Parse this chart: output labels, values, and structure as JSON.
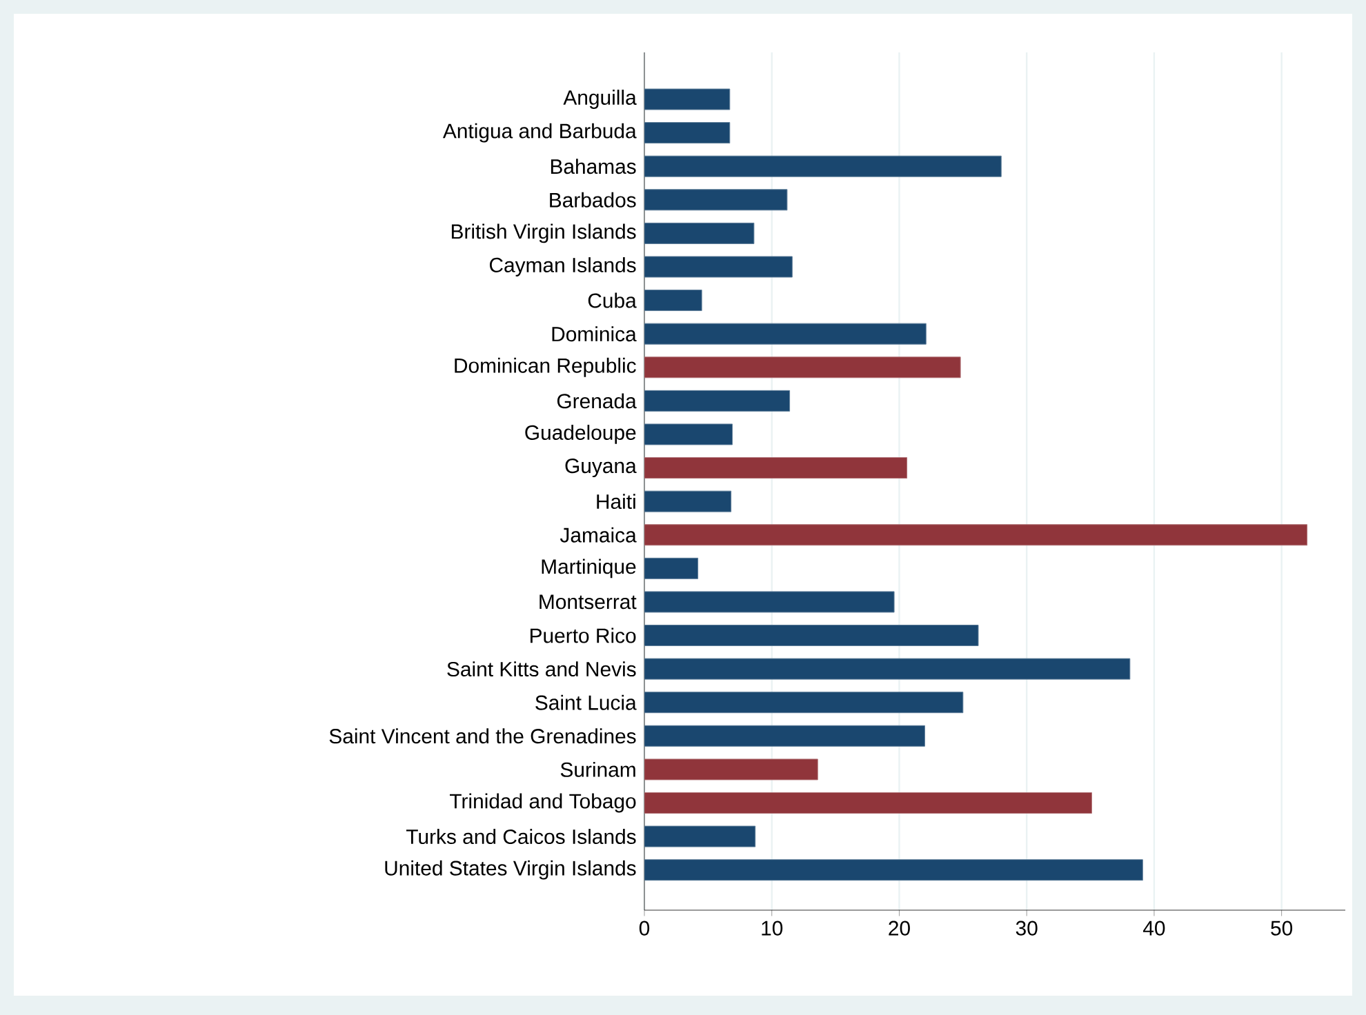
{
  "chart_data": {
    "type": "bar",
    "orientation": "horizontal",
    "categories": [
      "Anguilla",
      "Antigua and Barbuda",
      "Bahamas",
      "Barbados",
      "British Virgin Islands",
      "Cayman Islands",
      "Cuba",
      "Dominica",
      "Dominican Republic",
      "Grenada",
      "Guadeloupe",
      "Guyana",
      "Haiti",
      "Jamaica",
      "Martinique",
      "Montserrat",
      "Puerto Rico",
      "Saint Kitts and Nevis",
      "Saint Lucia",
      "Saint Vincent and the Grenadines",
      "Surinam",
      "Trinidad and Tobago",
      "Turks and Caicos Islands",
      "United States Virgin Islands"
    ],
    "values": [
      6.7,
      6.7,
      28.0,
      11.2,
      8.6,
      11.6,
      4.5,
      22.1,
      24.8,
      11.4,
      6.9,
      20.6,
      6.8,
      52.0,
      4.2,
      19.6,
      26.2,
      38.1,
      25.0,
      22.0,
      13.6,
      35.1,
      8.7,
      39.1
    ],
    "colors": [
      "#1a476f",
      "#1a476f",
      "#1a476f",
      "#1a476f",
      "#1a476f",
      "#1a476f",
      "#1a476f",
      "#1a476f",
      "#90353b",
      "#1a476f",
      "#1a476f",
      "#90353b",
      "#1a476f",
      "#90353b",
      "#1a476f",
      "#1a476f",
      "#1a476f",
      "#1a476f",
      "#1a476f",
      "#1a476f",
      "#90353b",
      "#90353b",
      "#1a476f",
      "#1a476f"
    ],
    "xlim": [
      0,
      55
    ],
    "xticks": [
      0,
      10,
      20,
      30,
      40,
      50
    ],
    "grid": "x"
  }
}
